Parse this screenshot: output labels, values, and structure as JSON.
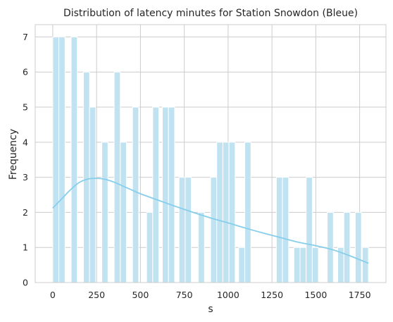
{
  "chart_data": {
    "type": "bar",
    "title": "Distribution of latency minutes for Station Snowdon (Bleue)",
    "xlabel": "s",
    "ylabel": "Frequency",
    "xlim": [
      -100,
      1900
    ],
    "ylim": [
      0,
      7.35
    ],
    "xticks": [
      0,
      250,
      500,
      750,
      1000,
      1250,
      1500,
      1750
    ],
    "yticks": [
      0,
      1,
      2,
      3,
      4,
      5,
      6,
      7
    ],
    "grid": true,
    "bin_width": 35,
    "bars": [
      {
        "x0": 0,
        "value": 7
      },
      {
        "x0": 35,
        "value": 7
      },
      {
        "x0": 105,
        "value": 7
      },
      {
        "x0": 175,
        "value": 6
      },
      {
        "x0": 210,
        "value": 5
      },
      {
        "x0": 280,
        "value": 4
      },
      {
        "x0": 350,
        "value": 6
      },
      {
        "x0": 385,
        "value": 4
      },
      {
        "x0": 455,
        "value": 5
      },
      {
        "x0": 535,
        "value": 2
      },
      {
        "x0": 570,
        "value": 5
      },
      {
        "x0": 625,
        "value": 5
      },
      {
        "x0": 660,
        "value": 5
      },
      {
        "x0": 720,
        "value": 3
      },
      {
        "x0": 755,
        "value": 3
      },
      {
        "x0": 830,
        "value": 2
      },
      {
        "x0": 900,
        "value": 3
      },
      {
        "x0": 935,
        "value": 4
      },
      {
        "x0": 970,
        "value": 4
      },
      {
        "x0": 1005,
        "value": 4
      },
      {
        "x0": 1060,
        "value": 1
      },
      {
        "x0": 1095,
        "value": 4
      },
      {
        "x0": 1275,
        "value": 3
      },
      {
        "x0": 1310,
        "value": 3
      },
      {
        "x0": 1375,
        "value": 1
      },
      {
        "x0": 1410,
        "value": 1
      },
      {
        "x0": 1445,
        "value": 3
      },
      {
        "x0": 1480,
        "value": 1
      },
      {
        "x0": 1565,
        "value": 2
      },
      {
        "x0": 1625,
        "value": 1
      },
      {
        "x0": 1660,
        "value": 2
      },
      {
        "x0": 1725,
        "value": 2
      },
      {
        "x0": 1765,
        "value": 1
      }
    ],
    "kde": {
      "x": [
        0,
        50,
        100,
        150,
        200,
        250,
        300,
        350,
        400,
        450,
        500,
        600,
        700,
        800,
        900,
        1000,
        1100,
        1200,
        1300,
        1400,
        1500,
        1600,
        1700,
        1800
      ],
      "y": [
        2.12,
        2.38,
        2.64,
        2.85,
        2.95,
        2.97,
        2.94,
        2.86,
        2.75,
        2.64,
        2.53,
        2.35,
        2.17,
        2.0,
        1.84,
        1.7,
        1.55,
        1.41,
        1.28,
        1.15,
        1.05,
        0.93,
        0.75,
        0.55
      ]
    },
    "colors": {
      "bar_fill": "#c1e3f1",
      "bar_edge": "#ffffff",
      "kde_line": "#87ceeb",
      "grid": "#cccccc",
      "text": "#262626"
    }
  }
}
